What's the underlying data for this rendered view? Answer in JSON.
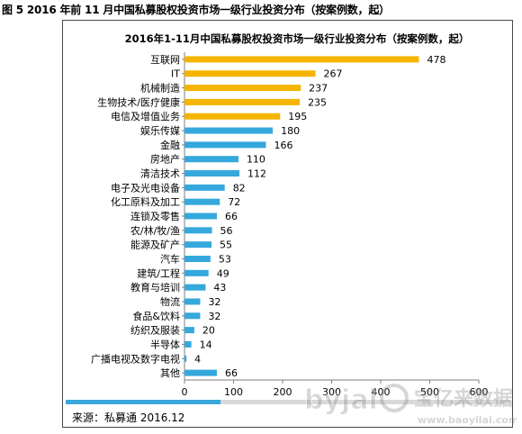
{
  "figure_caption": "图 5 2016 年前 11 月中国私募股权投资市场一级行业投资分布（按案例数，起）",
  "source_note": "来源：私募通 2016.12",
  "watermark": {
    "brand": "byjal",
    "site_cn": "宝亿来数据",
    "url": "www.baoyilai.com"
  },
  "colors": {
    "gold": "#f4b400",
    "blue": "#35a8dc",
    "axis": "#000000",
    "grid": "#7f7f7f"
  },
  "chart_data": {
    "type": "bar",
    "orientation": "horizontal",
    "title": "2016年1-11月中国私募股权投资市场一级行业投资分布（按案例数，起）",
    "xlabel": "",
    "ylabel": "",
    "xlim": [
      0,
      600
    ],
    "xticks": [
      0,
      100,
      200,
      300,
      400,
      500,
      600
    ],
    "grid": false,
    "categories": [
      "互联网",
      "IT",
      "机械制造",
      "生物技术/医疗健康",
      "电信及增值业务",
      "娱乐传媒",
      "金融",
      "房地产",
      "清洁技术",
      "电子及光电设备",
      "化工原料及加工",
      "连锁及零售",
      "农/林/牧/渔",
      "能源及矿产",
      "汽车",
      "建筑/工程",
      "教育与培训",
      "物流",
      "食品&饮料",
      "纺织及服装",
      "半导体",
      "广播电视及数字电视",
      "其他"
    ],
    "values": [
      478,
      267,
      237,
      235,
      195,
      180,
      166,
      110,
      112,
      82,
      72,
      66,
      56,
      55,
      53,
      49,
      43,
      32,
      32,
      20,
      14,
      4,
      66
    ],
    "bar_colors": [
      "gold",
      "gold",
      "gold",
      "gold",
      "gold",
      "blue",
      "blue",
      "blue",
      "blue",
      "blue",
      "blue",
      "blue",
      "blue",
      "blue",
      "blue",
      "blue",
      "blue",
      "blue",
      "blue",
      "blue",
      "blue",
      "blue",
      "blue"
    ]
  }
}
